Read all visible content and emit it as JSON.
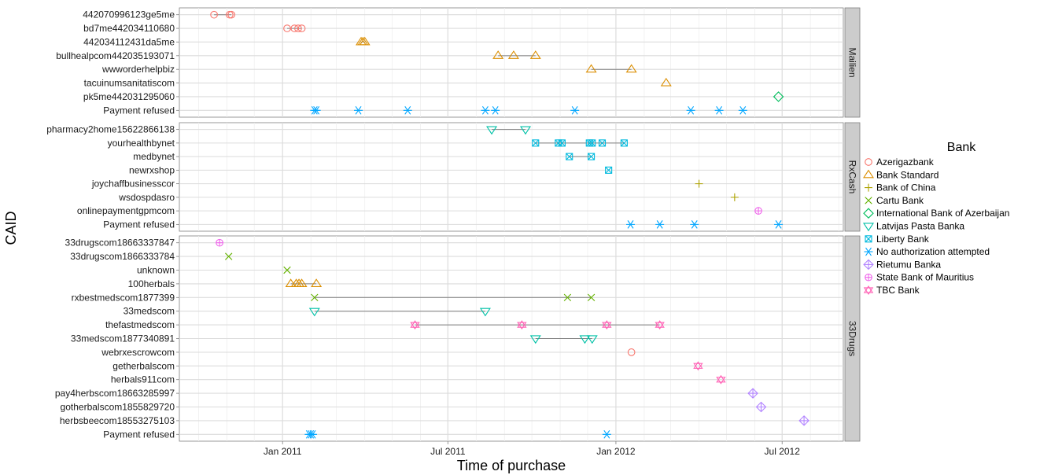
{
  "chart_data": {
    "type": "scatter",
    "xlabel": "Time of purchase",
    "ylabel": "CAID",
    "xlim": [
      "2010-09-10",
      "2012-09-06"
    ],
    "x_ticks": [
      {
        "date": "2011-01-01",
        "label": "Jan 2011"
      },
      {
        "date": "2011-07-01",
        "label": "Jul 2011"
      },
      {
        "date": "2012-01-01",
        "label": "Jan 2012"
      },
      {
        "date": "2012-07-01",
        "label": "Jul 2012"
      }
    ],
    "grid": true,
    "legend": {
      "title": "Bank",
      "position": "right",
      "entries": [
        {
          "name": "Azerigazbank",
          "color": "#F8766D",
          "shape": "circle"
        },
        {
          "name": "Bank Standard",
          "color": "#DB8E00",
          "shape": "triangle-up"
        },
        {
          "name": "Bank of China",
          "color": "#AEA200",
          "shape": "plus"
        },
        {
          "name": "Cartu Bank",
          "color": "#64B200",
          "shape": "cross"
        },
        {
          "name": "International Bank of Azerbaijan",
          "color": "#00BD5C",
          "shape": "diamond"
        },
        {
          "name": "Latvijas Pasta Banka",
          "color": "#00C1A7",
          "shape": "triangle-down"
        },
        {
          "name": "Liberty Bank",
          "color": "#00BADE",
          "shape": "square-cross"
        },
        {
          "name": "No authorization attempted",
          "color": "#00A6FF",
          "shape": "asterisk"
        },
        {
          "name": "Rietumu Banka",
          "color": "#B385FF",
          "shape": "diamond-plus"
        },
        {
          "name": "State Bank of Mauritius",
          "color": "#EF67EB",
          "shape": "circle-plus"
        },
        {
          "name": "TBC Bank",
          "color": "#FF63B6",
          "shape": "star-of-david"
        }
      ]
    },
    "panels": [
      {
        "label": "Mailien",
        "rows": [
          {
            "caid": "442070996123ge5me",
            "points": [
              {
                "bank": "Azerigazbank",
                "dates": [
                  "2010-10-18",
                  "2010-11-04",
                  "2010-11-06"
                ]
              }
            ]
          },
          {
            "caid": "bd7me442034110680",
            "points": [
              {
                "bank": "Azerigazbank",
                "dates": [
                  "2011-01-06",
                  "2011-01-14",
                  "2011-01-18",
                  "2011-01-22"
                ]
              }
            ]
          },
          {
            "caid": "442034112431da5me",
            "points": [
              {
                "bank": "Bank Standard",
                "dates": [
                  "2011-03-28",
                  "2011-03-30",
                  "2011-04-01"
                ]
              }
            ]
          },
          {
            "caid": "bullhealpcom442035193071",
            "points": [
              {
                "bank": "Bank Standard",
                "dates": [
                  "2011-08-25",
                  "2011-09-11",
                  "2011-10-05"
                ]
              }
            ]
          },
          {
            "caid": "wwworderhelpbiz",
            "points": [
              {
                "bank": "Bank Standard",
                "dates": [
                  "2011-12-05",
                  "2012-01-18"
                ]
              }
            ]
          },
          {
            "caid": "tacuinumsanitatiscom",
            "points": [
              {
                "bank": "Bank Standard",
                "dates": [
                  "2012-02-25"
                ]
              }
            ]
          },
          {
            "caid": "pk5me442031295060",
            "points": [
              {
                "bank": "International Bank of Azerbaijan",
                "dates": [
                  "2012-06-27"
                ]
              }
            ]
          },
          {
            "caid": "Payment refused",
            "points": [
              {
                "bank": "No authorization attempted",
                "dates": [
                  "2011-02-05",
                  "2011-02-07",
                  "2011-03-25",
                  "2011-05-18",
                  "2011-08-11",
                  "2011-08-22",
                  "2011-11-17",
                  "2012-03-23",
                  "2012-04-23",
                  "2012-05-19"
                ]
              }
            ]
          }
        ]
      },
      {
        "label": "RxCash",
        "rows": [
          {
            "caid": "pharmacy2home15622866138",
            "points": [
              {
                "bank": "Latvijas Pasta Banka",
                "dates": [
                  "2011-08-18",
                  "2011-09-24"
                ]
              }
            ]
          },
          {
            "caid": "yourhealthbynet",
            "points": [
              {
                "bank": "Liberty Bank",
                "dates": [
                  "2011-10-05",
                  "2011-10-30",
                  "2011-11-03",
                  "2011-12-03",
                  "2011-12-06",
                  "2011-12-17",
                  "2012-01-10"
                ]
              }
            ]
          },
          {
            "caid": "medbynet",
            "points": [
              {
                "bank": "Liberty Bank",
                "dates": [
                  "2011-11-11",
                  "2011-12-05"
                ]
              }
            ]
          },
          {
            "caid": "newrxshop",
            "points": [
              {
                "bank": "Liberty Bank",
                "dates": [
                  "2011-12-24"
                ]
              }
            ]
          },
          {
            "caid": "joychaffbusinesscor",
            "points": [
              {
                "bank": "Bank of China",
                "dates": [
                  "2012-04-01"
                ]
              }
            ]
          },
          {
            "caid": "wsdospdasro",
            "points": [
              {
                "bank": "Bank of China",
                "dates": [
                  "2012-05-10"
                ]
              }
            ]
          },
          {
            "caid": "onlinepaymentgpmcom",
            "points": [
              {
                "bank": "State Bank of Mauritius",
                "dates": [
                  "2012-06-05"
                ]
              }
            ]
          },
          {
            "caid": "Payment refused",
            "points": [
              {
                "bank": "No authorization attempted",
                "dates": [
                  "2012-01-17",
                  "2012-02-18",
                  "2012-03-27",
                  "2012-06-27"
                ]
              }
            ]
          }
        ]
      },
      {
        "label": "33Drugs",
        "rows": [
          {
            "caid": "33drugscom18663337847",
            "points": [
              {
                "bank": "State Bank of Mauritius",
                "dates": [
                  "2010-10-24"
                ]
              }
            ]
          },
          {
            "caid": "33drugscom1866333784",
            "points": [
              {
                "bank": "Cartu Bank",
                "dates": [
                  "2010-11-03"
                ]
              }
            ]
          },
          {
            "caid": "unknown",
            "points": [
              {
                "bank": "Cartu Bank",
                "dates": [
                  "2011-01-06"
                ]
              }
            ]
          },
          {
            "caid": "100herbals",
            "points": [
              {
                "bank": "Bank Standard",
                "dates": [
                  "2011-01-10",
                  "2011-01-16",
                  "2011-01-19",
                  "2011-01-22",
                  "2011-02-07"
                ]
              }
            ]
          },
          {
            "caid": "rxbestmedscom1877399",
            "points": [
              {
                "bank": "Cartu Bank",
                "dates": [
                  "2011-02-05",
                  "2011-11-09",
                  "2011-12-05"
                ]
              }
            ]
          },
          {
            "caid": "33medscom",
            "points": [
              {
                "bank": "Latvijas Pasta Banka",
                "dates": [
                  "2011-02-05",
                  "2011-08-11"
                ]
              }
            ]
          },
          {
            "caid": "thefastmedscom",
            "points": [
              {
                "bank": "TBC Bank",
                "dates": [
                  "2011-05-26",
                  "2011-09-20",
                  "2011-12-22",
                  "2012-02-18"
                ]
              }
            ]
          },
          {
            "caid": "33medscom1877340891",
            "points": [
              {
                "bank": "Latvijas Pasta Banka",
                "dates": [
                  "2011-10-05",
                  "2011-11-28",
                  "2011-12-06"
                ]
              }
            ]
          },
          {
            "caid": "webrxescrowcom",
            "points": [
              {
                "bank": "Azerigazbank",
                "dates": [
                  "2012-01-18"
                ]
              }
            ]
          },
          {
            "caid": "getherbalscom",
            "points": [
              {
                "bank": "TBC Bank",
                "dates": [
                  "2012-03-31"
                ]
              }
            ]
          },
          {
            "caid": "herbals911com",
            "points": [
              {
                "bank": "TBC Bank",
                "dates": [
                  "2012-04-25"
                ]
              }
            ]
          },
          {
            "caid": "pay4herbscom18663285997",
            "points": [
              {
                "bank": "Rietumu Banka",
                "dates": [
                  "2012-05-30"
                ]
              }
            ]
          },
          {
            "caid": "gotherbalscom1855829720",
            "points": [
              {
                "bank": "Rietumu Banka",
                "dates": [
                  "2012-06-08"
                ]
              }
            ]
          },
          {
            "caid": "herbsbeecom18553275103",
            "points": [
              {
                "bank": "Rietumu Banka",
                "dates": [
                  "2012-07-25"
                ]
              }
            ]
          },
          {
            "caid": "Payment refused",
            "points": [
              {
                "bank": "No authorization attempted",
                "dates": [
                  "2011-01-30",
                  "2011-02-01",
                  "2011-02-03",
                  "2011-12-22"
                ]
              }
            ]
          }
        ]
      }
    ]
  }
}
